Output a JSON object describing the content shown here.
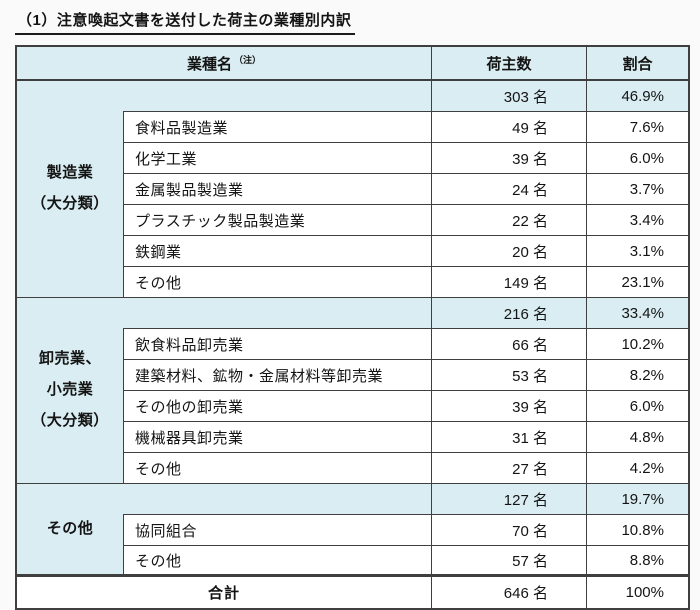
{
  "title": "（1）注意喚起文書を送付した荷主の業種別内訳",
  "table": {
    "headers": {
      "industry": "業種名",
      "industry_note": "（注）",
      "shippers": "荷主数",
      "ratio": "割合"
    },
    "groups": [
      {
        "label": "製造業\n（大分類）",
        "subtotal": {
          "count": "303 名",
          "ratio": "46.9%"
        },
        "rows": [
          {
            "name": "食料品製造業",
            "count": "49 名",
            "ratio": "7.6%"
          },
          {
            "name": "化学工業",
            "count": "39 名",
            "ratio": "6.0%"
          },
          {
            "name": "金属製品製造業",
            "count": "24 名",
            "ratio": "3.7%"
          },
          {
            "name": "プラスチック製品製造業",
            "count": "22 名",
            "ratio": "3.4%"
          },
          {
            "name": "鉄鋼業",
            "count": "20 名",
            "ratio": "3.1%"
          },
          {
            "name": "その他",
            "count": "149 名",
            "ratio": "23.1%"
          }
        ]
      },
      {
        "label": "卸売業、\n小売業\n（大分類）",
        "subtotal": {
          "count": "216 名",
          "ratio": "33.4%"
        },
        "rows": [
          {
            "name": "飲食料品卸売業",
            "count": "66 名",
            "ratio": "10.2%"
          },
          {
            "name": "建築材料、鉱物・金属材料等卸売業",
            "count": "53 名",
            "ratio": "8.2%"
          },
          {
            "name": "その他の卸売業",
            "count": "39 名",
            "ratio": "6.0%"
          },
          {
            "name": "機械器具卸売業",
            "count": "31 名",
            "ratio": "4.8%"
          },
          {
            "name": "その他",
            "count": "27 名",
            "ratio": "4.2%"
          }
        ]
      },
      {
        "label": "その他",
        "subtotal": {
          "count": "127 名",
          "ratio": "19.7%"
        },
        "rows": [
          {
            "name": "協同組合",
            "count": "70 名",
            "ratio": "10.8%"
          },
          {
            "name": "その他",
            "count": "57 名",
            "ratio": "8.8%"
          }
        ]
      }
    ],
    "total": {
      "label": "合計",
      "count": "646 名",
      "ratio": "100%"
    }
  },
  "colors": {
    "accent_fill": "#d9edf2",
    "border": "#3f3f3f",
    "page_background": "#fafafa"
  }
}
